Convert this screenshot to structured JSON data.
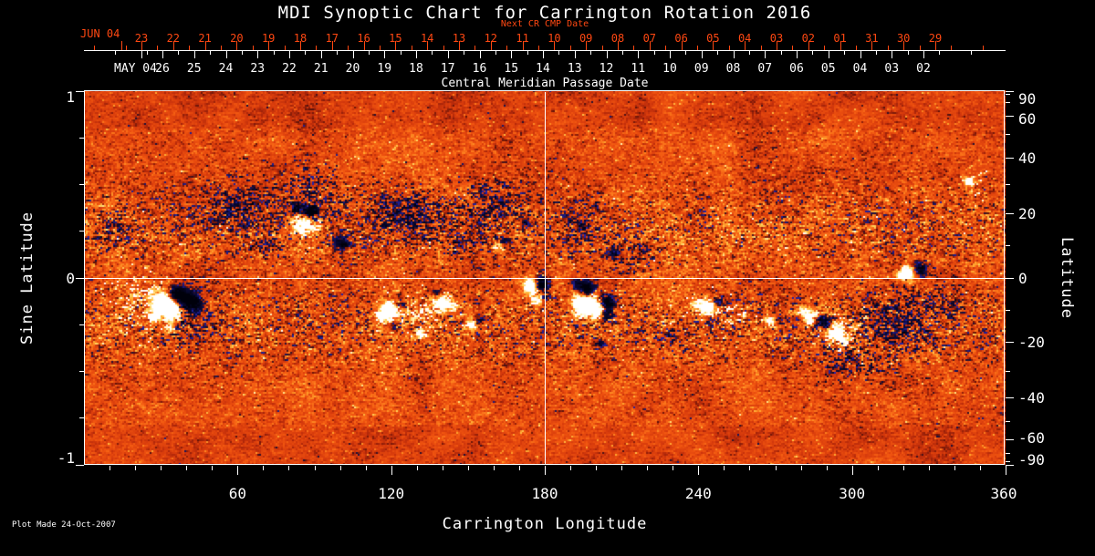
{
  "title": "MDI Synoptic Chart for Carrington Rotation 2016",
  "plot_made": "Plot Made 24-Oct-2007",
  "colors": {
    "background": "#000000",
    "axis": "#ffffff",
    "date_red": "#ff4812",
    "magnetogram_base": "#d84a0e",
    "positive_polarity": "#ffffff",
    "negative_polarity": "#2222aa"
  },
  "chart_data": {
    "type": "heatmap",
    "title": "MDI Synoptic Chart for Carrington Rotation 2016",
    "xlabel": "Carrington Longitude",
    "ylabel_left": "Sine Latitude",
    "ylabel_right": "Latitude",
    "xlim": [
      0,
      360
    ],
    "x_tick_labels": [
      "60",
      "120",
      "180",
      "240",
      "300",
      "360"
    ],
    "x_tick_values": [
      60,
      120,
      180,
      240,
      300,
      360
    ],
    "x_minor_step_deg": 10,
    "sine_ylim": [
      -1,
      1
    ],
    "y_left_tick_labels": [
      "1",
      "0",
      "-1"
    ],
    "y_left_tick_values": [
      1,
      0,
      -1
    ],
    "y_left_minor_step": 0.25,
    "y_right_tick_labels": [
      "90",
      "60",
      "40",
      "20",
      "0",
      "-20",
      "-40",
      "-60",
      "-90"
    ],
    "y_right_tick_values": [
      90,
      60,
      40,
      20,
      0,
      -20,
      -40,
      -60,
      -90
    ],
    "y_right_minor_step_deg": 10,
    "grid_crosshair": {
      "longitude": 180,
      "sine_latitude": 0
    },
    "legend": "none",
    "top_axes": {
      "next_cr": {
        "title_label": "Next CR CMP Date",
        "month_label": "JUN 04",
        "days": [
          "23",
          "22",
          "21",
          "20",
          "19",
          "18",
          "17",
          "16",
          "15",
          "14",
          "13",
          "12",
          "11",
          "10",
          "09",
          "08",
          "07",
          "06",
          "05",
          "04",
          "03",
          "02",
          "01",
          "31",
          "30",
          "29"
        ]
      },
      "cmp": {
        "axis_title": "Central Meridian Passage Date",
        "month_label": "MAY 04",
        "days": [
          "26",
          "25",
          "24",
          "23",
          "22",
          "21",
          "20",
          "19",
          "18",
          "17",
          "16",
          "15",
          "14",
          "13",
          "12",
          "11",
          "10",
          "09",
          "08",
          "07",
          "06",
          "05",
          "04",
          "03",
          "02"
        ]
      }
    },
    "active_regions": [
      {
        "lon": 34,
        "sine_lat": -0.13,
        "blobs": [
          [
            -4,
            -0.01,
            4.2,
            2.1
          ],
          [
            0,
            -0.05,
            3.2,
            1.6
          ],
          [
            1,
            0.05,
            2.6,
            -1.5
          ],
          [
            5,
            0.02,
            3.6,
            -1.9
          ],
          [
            9,
            -0.01,
            2.6,
            -1.3
          ],
          [
            -7,
            -0.08,
            2.2,
            1.0
          ],
          [
            -1,
            -0.14,
            2.0,
            0.8
          ]
        ]
      },
      {
        "lon": 87,
        "sine_lat": 0.33,
        "blobs": [
          [
            -2,
            -0.04,
            3.2,
            1.9
          ],
          [
            1,
            0.03,
            2.8,
            -1.8
          ],
          [
            -5,
            0.05,
            2.2,
            -1.0
          ],
          [
            3,
            -0.06,
            1.8,
            0.8
          ]
        ]
      },
      {
        "lon": 101,
        "sine_lat": 0.18,
        "blobs": [
          [
            0,
            0,
            2.2,
            -1.2
          ],
          [
            -3,
            0.03,
            1.8,
            -0.8
          ],
          [
            2,
            -0.03,
            1.6,
            0.7
          ]
        ]
      },
      {
        "lon": 119,
        "sine_lat": -0.17,
        "blobs": [
          [
            0,
            0,
            3.2,
            1.6
          ],
          [
            -4,
            -0.03,
            2.2,
            1.0
          ],
          [
            4,
            0.03,
            2.2,
            -0.9
          ],
          [
            2,
            -0.08,
            1.8,
            -0.6
          ]
        ]
      },
      {
        "lon": 139,
        "sine_lat": -0.13,
        "blobs": [
          [
            0,
            0,
            2.8,
            1.5
          ],
          [
            4,
            -0.02,
            2.2,
            0.9
          ],
          [
            -2,
            0.05,
            1.8,
            -0.7
          ]
        ]
      },
      {
        "lon": 131,
        "sine_lat": -0.3,
        "blobs": [
          [
            0,
            0,
            2.0,
            1.0
          ]
        ]
      },
      {
        "lon": 151,
        "sine_lat": -0.25,
        "blobs": [
          [
            0,
            0,
            2.2,
            1.2
          ],
          [
            3,
            0.02,
            1.8,
            -0.8
          ]
        ]
      },
      {
        "lon": 161,
        "sine_lat": 0.17,
        "blobs": [
          [
            0,
            0,
            2.0,
            1.0
          ],
          [
            3,
            0.03,
            1.8,
            -0.9
          ]
        ]
      },
      {
        "lon": 176,
        "sine_lat": -0.03,
        "blobs": [
          [
            -2,
            -0.01,
            2.8,
            1.9
          ],
          [
            2,
            0,
            2.8,
            -2.1
          ],
          [
            0,
            -0.09,
            2.0,
            1.0
          ],
          [
            4,
            -0.07,
            1.8,
            -0.9
          ]
        ]
      },
      {
        "lon": 195,
        "sine_lat": -0.13,
        "blobs": [
          [
            0,
            -0.01,
            4.4,
            2.3
          ],
          [
            1,
            0.07,
            3.0,
            -2.0
          ],
          [
            5,
            -0.04,
            2.4,
            1.2
          ],
          [
            9,
            0,
            2.8,
            -1.7
          ],
          [
            9,
            -0.07,
            2.2,
            -1.2
          ],
          [
            -3,
            0.1,
            2.0,
            -0.9
          ],
          [
            6,
            -0.22,
            1.8,
            -0.8
          ]
        ]
      },
      {
        "lon": 206,
        "sine_lat": 0.14,
        "blobs": [
          [
            0,
            0,
            2.2,
            -1.0
          ]
        ]
      },
      {
        "lon": 172,
        "sine_lat": 0.3,
        "blobs": [
          [
            0,
            0,
            2.0,
            -0.8
          ]
        ]
      },
      {
        "lon": 243,
        "sine_lat": -0.16,
        "blobs": [
          [
            0,
            0,
            3.0,
            1.6
          ],
          [
            -4,
            0.02,
            2.2,
            0.9
          ],
          [
            4,
            0.04,
            1.9,
            -0.9
          ],
          [
            1,
            -0.07,
            1.8,
            -0.6
          ]
        ]
      },
      {
        "lon": 268,
        "sine_lat": -0.23,
        "blobs": [
          [
            0,
            0,
            2.0,
            1.0
          ],
          [
            3,
            0.01,
            1.6,
            -0.7
          ]
        ]
      },
      {
        "lon": 283,
        "sine_lat": -0.21,
        "blobs": [
          [
            0,
            0,
            2.6,
            1.4
          ],
          [
            4,
            -0.02,
            2.2,
            -1.2
          ],
          [
            -3,
            0.04,
            1.8,
            0.8
          ]
        ]
      },
      {
        "lon": 293,
        "sine_lat": -0.29,
        "blobs": [
          [
            0,
            0,
            3.0,
            1.7
          ],
          [
            4,
            -0.05,
            2.2,
            0.9
          ],
          [
            -3,
            0.05,
            1.9,
            -0.8
          ]
        ]
      },
      {
        "lon": 322,
        "sine_lat": 0.03,
        "blobs": [
          [
            -1,
            0,
            2.8,
            1.8
          ],
          [
            4,
            0.02,
            2.4,
            -1.4
          ],
          [
            -4,
            -0.02,
            1.8,
            0.7
          ]
        ]
      },
      {
        "lon": 345,
        "sine_lat": 0.52,
        "blobs": [
          [
            0,
            0,
            1.8,
            1.1
          ]
        ]
      }
    ],
    "diffuse_patches": [
      {
        "lon": 60,
        "sine_lat": 0.38,
        "rlon": 13,
        "rslat": 0.13,
        "density": 0.5,
        "polarity": -1
      },
      {
        "lon": 90,
        "sine_lat": 0.44,
        "rlon": 11,
        "rslat": 0.15,
        "density": 0.45,
        "polarity": -1
      },
      {
        "lon": 126,
        "sine_lat": 0.34,
        "rlon": 15,
        "rslat": 0.13,
        "density": 0.6,
        "polarity": -1
      },
      {
        "lon": 158,
        "sine_lat": 0.38,
        "rlon": 13,
        "rslat": 0.13,
        "density": 0.45,
        "polarity": -1
      },
      {
        "lon": 193,
        "sine_lat": 0.26,
        "rlon": 9,
        "rslat": 0.11,
        "density": 0.4,
        "polarity": -1
      },
      {
        "lon": 215,
        "sine_lat": 0.14,
        "rlon": 7,
        "rslat": 0.09,
        "density": 0.35,
        "polarity": -1
      },
      {
        "lon": 317,
        "sine_lat": -0.24,
        "rlon": 15,
        "rslat": 0.16,
        "density": 0.6,
        "polarity": -1
      },
      {
        "lon": 300,
        "sine_lat": -0.44,
        "rlon": 11,
        "rslat": 0.11,
        "density": 0.35,
        "polarity": -1
      },
      {
        "lon": 336,
        "sine_lat": -0.12,
        "rlon": 7,
        "rslat": 0.09,
        "density": 0.35,
        "polarity": -1
      },
      {
        "lon": 40,
        "sine_lat": -0.26,
        "rlon": 8,
        "rslat": 0.09,
        "density": 0.3,
        "polarity": -1
      },
      {
        "lon": 12,
        "sine_lat": 0.28,
        "rlon": 7,
        "rslat": 0.11,
        "density": 0.3,
        "polarity": -1
      },
      {
        "lon": 230,
        "sine_lat": -0.3,
        "rlon": 7,
        "rslat": 0.09,
        "density": 0.25,
        "polarity": -1
      },
      {
        "lon": 70,
        "sine_lat": 0.18,
        "rlon": 6,
        "rslat": 0.08,
        "density": 0.3,
        "polarity": -1
      },
      {
        "lon": 145,
        "sine_lat": 0.18,
        "rlon": 6,
        "rslat": 0.08,
        "density": 0.3,
        "polarity": -1
      },
      {
        "lon": 20,
        "sine_lat": -0.12,
        "rlon": 9,
        "rslat": 0.13,
        "density": 0.4,
        "polarity": 1
      },
      {
        "lon": 130,
        "sine_lat": -0.18,
        "rlon": 11,
        "rslat": 0.09,
        "density": 0.4,
        "polarity": 1
      },
      {
        "lon": 250,
        "sine_lat": -0.19,
        "rlon": 9,
        "rslat": 0.09,
        "density": 0.3,
        "polarity": 1
      },
      {
        "lon": 296,
        "sine_lat": -0.31,
        "rlon": 9,
        "rslat": 0.09,
        "density": 0.35,
        "polarity": 1
      },
      {
        "lon": 90,
        "sine_lat": 0.29,
        "rlon": 5,
        "rslat": 0.07,
        "density": 0.3,
        "polarity": 1
      },
      {
        "lon": 200,
        "sine_lat": -0.16,
        "rlon": 7,
        "rslat": 0.09,
        "density": 0.3,
        "polarity": 1
      },
      {
        "lon": 347,
        "sine_lat": 0.5,
        "rlon": 4,
        "rslat": 0.07,
        "density": 0.3,
        "polarity": 1
      },
      {
        "lon": 177,
        "sine_lat": -0.06,
        "rlon": 5,
        "rslat": 0.07,
        "density": 0.3,
        "polarity": 1
      }
    ]
  }
}
